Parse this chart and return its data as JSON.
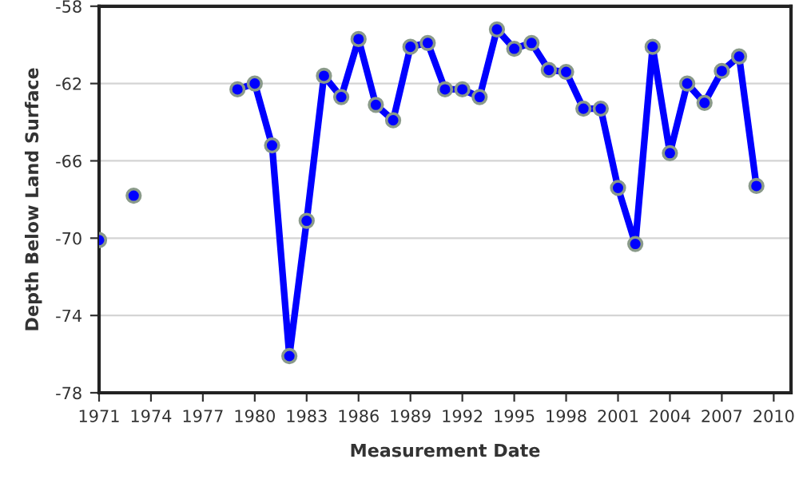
{
  "chart_data": {
    "type": "line",
    "xlabel": "Measurement Date",
    "ylabel": "Depth Below Land Surface",
    "x": [
      1971,
      1972,
      1973,
      1976,
      1979,
      1980,
      1981,
      1982,
      1983,
      1984,
      1985,
      1986,
      1987,
      1988,
      1989,
      1990,
      1991,
      1992,
      1993,
      1994,
      1995,
      1996,
      1997,
      1998,
      1999,
      2000,
      2001,
      2002,
      2003,
      2004,
      2005,
      2006,
      2007,
      2008,
      2009
    ],
    "series": [
      {
        "color": "#0000ff",
        "values": [
          -70.1,
          null,
          -67.8,
          null,
          -62.3,
          -62.0,
          -65.2,
          -76.1,
          -69.1,
          -61.6,
          -62.7,
          -59.7,
          -63.1,
          -63.9,
          -60.1,
          -59.9,
          -62.3,
          -62.3,
          -62.7,
          -59.2,
          -60.2,
          -59.9,
          -61.3,
          -61.4,
          -63.3,
          -63.3,
          -67.4,
          -70.3,
          -60.1,
          -65.6,
          -62.0,
          -63.0,
          -61.35,
          -60.6,
          -67.3
        ]
      }
    ],
    "xlim": [
      1971,
      2011
    ],
    "xticks": [
      1971,
      1974,
      1977,
      1980,
      1983,
      1986,
      1989,
      1992,
      1995,
      1998,
      2001,
      2004,
      2007,
      2010
    ],
    "ylim": [
      -78,
      -58
    ],
    "yticks": [
      -78,
      -74,
      -70,
      -66,
      -62,
      -58
    ],
    "grid": "y",
    "marker": "circle",
    "line_style": "solid",
    "legend": false
  }
}
